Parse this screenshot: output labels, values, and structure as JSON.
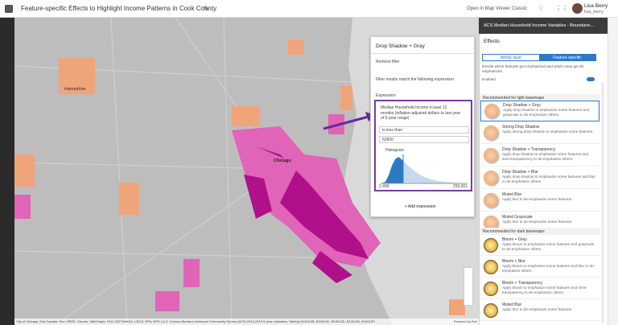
{
  "header": {
    "title": "Feature-specific Effects to Highlight Income Patterns in Cook County",
    "open_classic": "Open in Map Viewer Classic",
    "user_name": "Lisa Berry",
    "user_id": "lisa_berry"
  },
  "map": {
    "labels": [
      "Hampshire",
      "Chicago"
    ],
    "attribution": "City of Chicago, Esri Canada, Esri, HERE, Garmin, SafeGraph, FAO, METI/NASA, USGS, EPA, NPS | U.S. Census Bureau's American Community Survey (ACS) 2015-2019 5-year estimates, Table(s) B19013B, B19013C, B19013D, B19013E, B19013F...",
    "powered_by": "Powered by Esri"
  },
  "filter_panel": {
    "title": "Drop Shadow + Gray",
    "remove": "Remove filter",
    "description": "Filter results match the following expression",
    "expression_label": "Expression",
    "field": "Median Household Income in past 12 months (inflation-adjusted dollars to last year of 5-year range)",
    "operator": "is less than",
    "value": "62800",
    "histogram_label": "Histogram",
    "hist_min": "2,499",
    "hist_max": "250,001",
    "add": "Add expression"
  },
  "layer_header": "ACS Median Household Income Variables - Boundarie...",
  "effects_panel": {
    "title": "Effects",
    "tabs": [
      "Whole layer",
      "Feature-specific"
    ],
    "description": "Decide which features get emphasized and which ones get de-emphasized.",
    "enabled": "Enabled",
    "groups": [
      {
        "heading": "Recommended for light basemaps",
        "items": [
          {
            "name": "Drop Shadow + Gray",
            "desc": "Apply drop shadow to emphasize some features and grayscale to de-emphasize others."
          },
          {
            "name": "Strong Drop Shadow",
            "desc": "Apply strong drop shadow to emphasize some features."
          },
          {
            "name": "Drop Shadow + Transparency",
            "desc": "Apply drop shadow to emphasize some features and semi-transparency to de-emphasize others."
          },
          {
            "name": "Drop Shadow + Blur",
            "desc": "Apply drop shadow to emphasize some features and blur to de-emphasize others."
          },
          {
            "name": "Muted Blur",
            "desc": "Apply blur to de-emphasize some features."
          },
          {
            "name": "Muted Grayscale",
            "desc": "Apply blur to de-emphasize some features."
          }
        ]
      },
      {
        "heading": "Recommended for dark basemaps",
        "items": [
          {
            "name": "Bloom + Gray",
            "desc": "Apply bloom to emphasize some features and grayscale to de-emphasize others."
          },
          {
            "name": "Bloom + Blur",
            "desc": "Apply bloom to emphasize some features and blur to de-emphasize others."
          },
          {
            "name": "Bloom + Transparency",
            "desc": "Apply bloom to emphasize some features and semi-transparency to de-emphasize others."
          },
          {
            "name": "Muted Blur",
            "desc": "Apply blur to de-emphasize some features."
          }
        ]
      }
    ]
  }
}
